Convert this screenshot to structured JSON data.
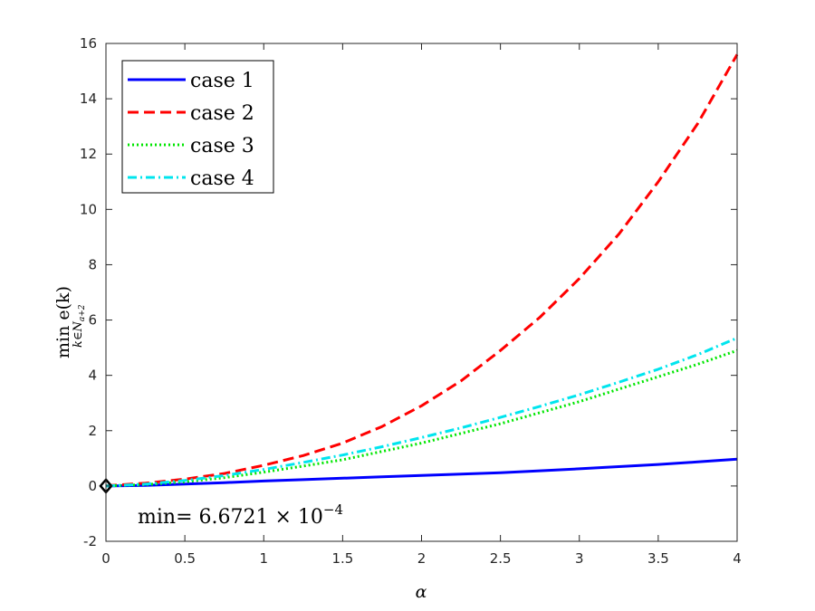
{
  "chart_data": {
    "type": "line",
    "title": "",
    "xlabel": "α",
    "ylabel": {
      "main": "min  e(k)",
      "subscript": "k∈N",
      "sub_subscript": "a+2"
    },
    "xlim": [
      0,
      4
    ],
    "ylim": [
      -2,
      16
    ],
    "xticks": [
      0,
      0.5,
      1,
      1.5,
      2,
      2.5,
      3,
      3.5,
      4
    ],
    "xtick_labels": [
      "0",
      "0.5",
      "1",
      "1.5",
      "2",
      "2.5",
      "3",
      "3.5",
      "4"
    ],
    "yticks": [
      -2,
      0,
      2,
      4,
      6,
      8,
      10,
      12,
      14,
      16
    ],
    "ytick_labels": [
      "-2",
      "0",
      "2",
      "4",
      "6",
      "8",
      "10",
      "12",
      "14",
      "16"
    ],
    "grid": false,
    "legend_position": "top-left",
    "x": [
      0,
      0.25,
      0.5,
      0.75,
      1,
      1.25,
      1.5,
      1.75,
      2,
      2.25,
      2.5,
      2.75,
      3,
      3.25,
      3.5,
      3.75,
      4
    ],
    "series": [
      {
        "name": "case 1",
        "color": "#0000ff",
        "dash": "solid",
        "values": [
          0.0007,
          0.02,
          0.07,
          0.12,
          0.18,
          0.23,
          0.28,
          0.33,
          0.38,
          0.43,
          0.48,
          0.55,
          0.62,
          0.7,
          0.78,
          0.87,
          0.97
        ]
      },
      {
        "name": "case 2",
        "color": "#ff0000",
        "dash": "dashed",
        "values": [
          0.01,
          0.1,
          0.25,
          0.45,
          0.75,
          1.1,
          1.55,
          2.15,
          2.9,
          3.8,
          4.9,
          6.1,
          7.5,
          9.1,
          11.0,
          13.1,
          15.6
        ]
      },
      {
        "name": "case 3",
        "color": "#00e600",
        "dash": "dotted",
        "values": [
          0.0007,
          0.05,
          0.15,
          0.3,
          0.5,
          0.72,
          0.95,
          1.25,
          1.55,
          1.9,
          2.25,
          2.65,
          3.05,
          3.5,
          3.95,
          4.4,
          4.9
        ]
      },
      {
        "name": "case 4",
        "color": "#00e5ee",
        "dash": "dashdot",
        "values": [
          0.0007,
          0.07,
          0.2,
          0.38,
          0.6,
          0.85,
          1.12,
          1.42,
          1.75,
          2.1,
          2.48,
          2.88,
          3.3,
          3.75,
          4.22,
          4.75,
          5.35
        ]
      }
    ],
    "marker": {
      "x": 0,
      "y": 0.00067,
      "shape": "diamond",
      "color": "#000000"
    },
    "annotation": {
      "prefix": "min= 6.6721 × 10",
      "exponent": "−4"
    }
  }
}
